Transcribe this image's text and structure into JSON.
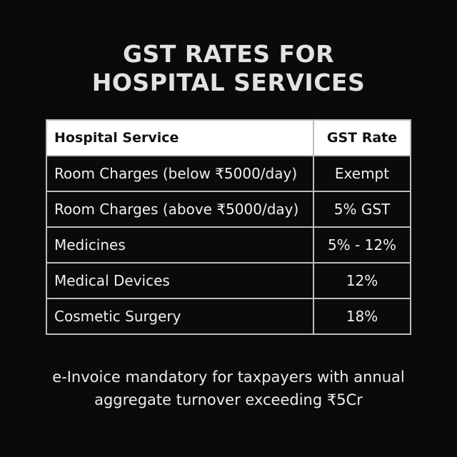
{
  "header": {
    "title_lines": [
      "GST RATES FOR",
      "HOSPITAL SERVICES"
    ]
  },
  "table": {
    "columns": [
      "Hospital Service",
      "GST Rate"
    ],
    "rows": [
      [
        "Room Charges (below ₹5000/day)",
        "Exempt"
      ],
      [
        "Room Charges (above ₹5000/day)",
        "5% GST"
      ],
      [
        "Medicines",
        "5% - 12%"
      ],
      [
        "Medical Devices",
        "12%"
      ],
      [
        "Cosmetic Surgery",
        "18%"
      ]
    ]
  },
  "footer": {
    "note_lines": [
      "e-Invoice mandatory for taxpayers with annual",
      "aggregate turnover exceeding ₹5Cr"
    ]
  }
}
